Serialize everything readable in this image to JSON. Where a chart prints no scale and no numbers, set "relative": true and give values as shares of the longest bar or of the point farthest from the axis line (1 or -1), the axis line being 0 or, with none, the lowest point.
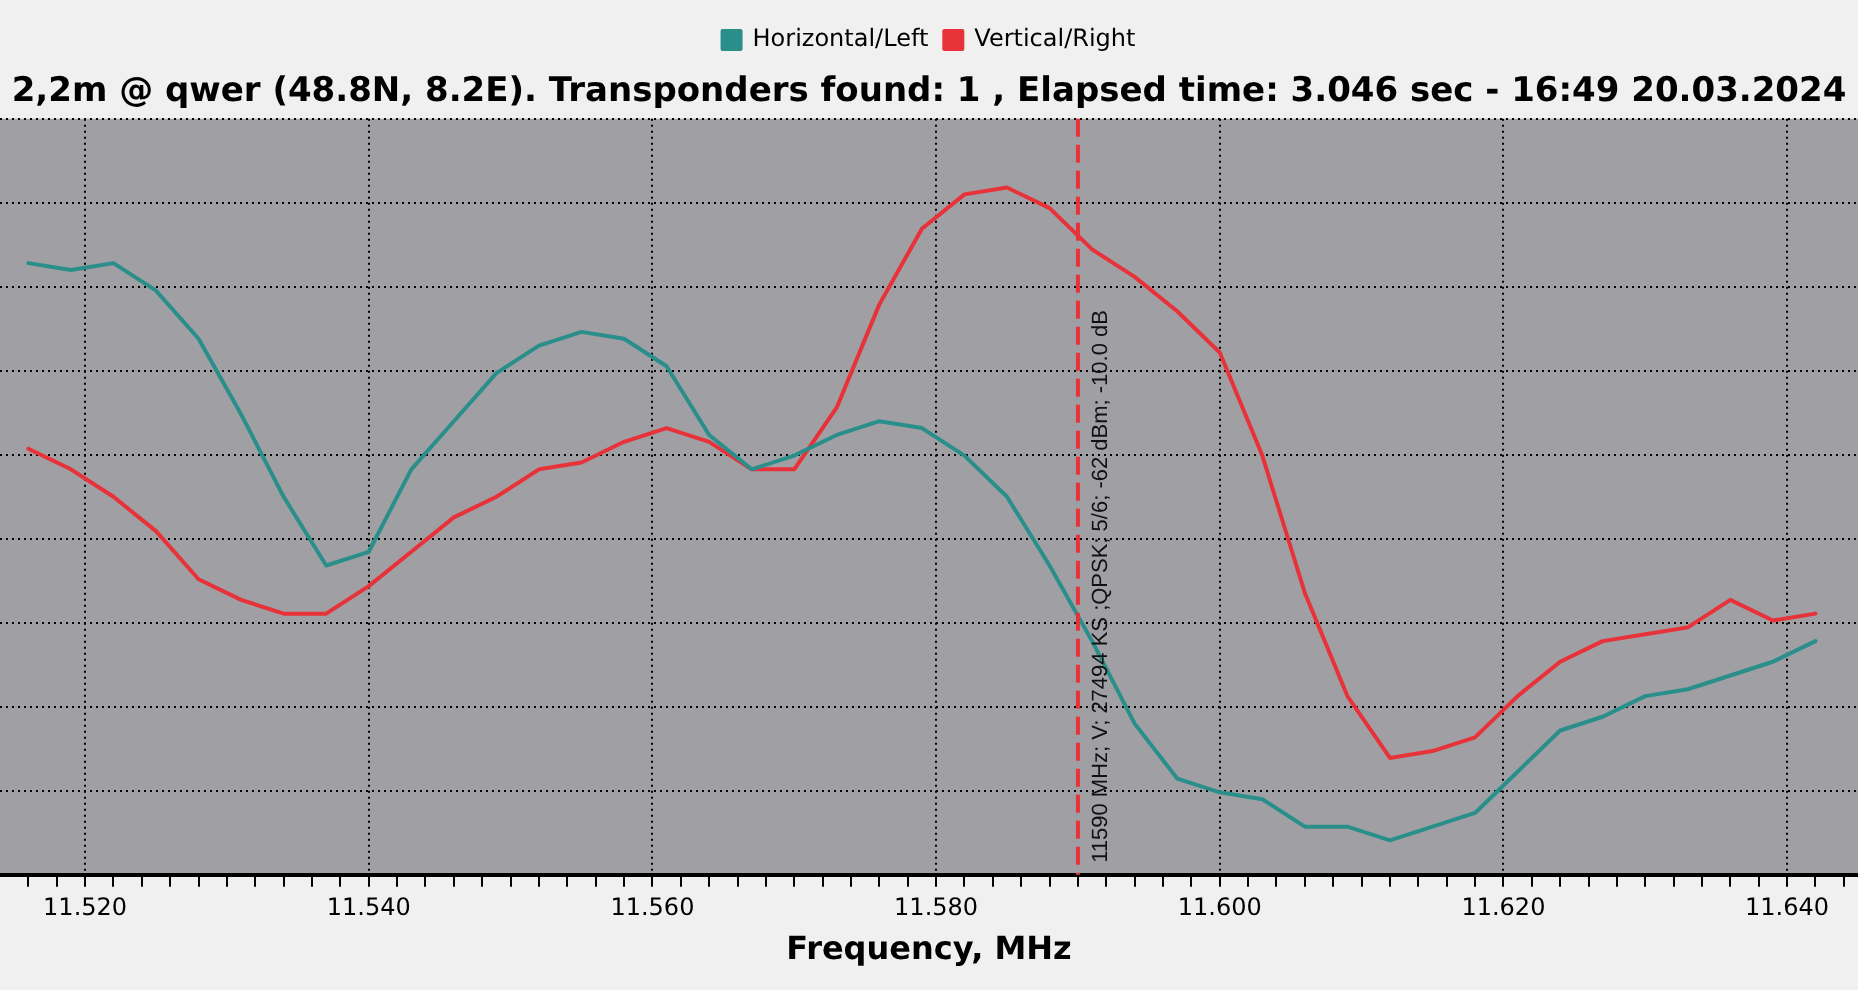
{
  "chart_data": {
    "type": "line",
    "title": "2,2m @ qwer (48.8N, 8.2E). Transponders found: 1 , Elapsed time: 3.046 sec - 16:49 20.03.2024",
    "xlabel": "Frequency, MHz",
    "x": [
      11.516,
      11.519,
      11.522,
      11.525,
      11.528,
      11.531,
      11.534,
      11.537,
      11.54,
      11.543,
      11.546,
      11.549,
      11.552,
      11.555,
      11.558,
      11.561,
      11.564,
      11.567,
      11.57,
      11.573,
      11.576,
      11.579,
      11.582,
      11.585,
      11.588,
      11.591,
      11.594,
      11.597,
      11.6,
      11.603,
      11.606,
      11.609,
      11.612,
      11.615,
      11.618,
      11.621,
      11.624,
      11.627,
      11.63,
      11.633,
      11.636,
      11.639,
      11.642
    ],
    "series": [
      {
        "name": "Horizontal/Left",
        "color": "#2a8f8a",
        "values": [
          0.89,
          0.88,
          0.89,
          0.85,
          0.78,
          0.67,
          0.55,
          0.45,
          0.47,
          0.59,
          0.66,
          0.73,
          0.77,
          0.79,
          0.78,
          0.74,
          0.64,
          0.59,
          0.61,
          0.64,
          0.66,
          0.65,
          0.61,
          0.55,
          0.45,
          0.34,
          0.22,
          0.14,
          0.12,
          0.11,
          0.07,
          0.07,
          0.05,
          0.07,
          0.09,
          0.15,
          0.21,
          0.23,
          0.26,
          0.27,
          0.29,
          0.31,
          0.34
        ]
      },
      {
        "name": "Vertical/Right",
        "color": "#e8323a",
        "values": [
          0.62,
          0.59,
          0.55,
          0.5,
          0.43,
          0.4,
          0.38,
          0.38,
          0.42,
          0.47,
          0.52,
          0.55,
          0.59,
          0.6,
          0.63,
          0.65,
          0.63,
          0.59,
          0.59,
          0.68,
          0.83,
          0.94,
          0.99,
          1,
          0.97,
          0.91,
          0.87,
          0.82,
          0.76,
          0.61,
          0.41,
          0.26,
          0.17,
          0.18,
          0.2,
          0.26,
          0.31,
          0.34,
          0.35,
          0.36,
          0.4,
          0.37,
          0.38
        ]
      }
    ],
    "relative": true,
    "xlim": [
      11.514,
      11.645
    ],
    "xticks": [
      {
        "value": 11.516,
        "label": null
      },
      {
        "value": 11.518,
        "label": null
      },
      {
        "value": 11.52,
        "label": "11.520"
      },
      {
        "value": 11.522,
        "label": null
      },
      {
        "value": 11.524,
        "label": null
      },
      {
        "value": 11.526,
        "label": null
      },
      {
        "value": 11.528,
        "label": null
      },
      {
        "value": 11.53,
        "label": null
      },
      {
        "value": 11.532,
        "label": null
      },
      {
        "value": 11.534,
        "label": null
      },
      {
        "value": 11.536,
        "label": null
      },
      {
        "value": 11.538,
        "label": null
      },
      {
        "value": 11.54,
        "label": "11.540"
      },
      {
        "value": 11.542,
        "label": null
      },
      {
        "value": 11.544,
        "label": null
      },
      {
        "value": 11.546,
        "label": null
      },
      {
        "value": 11.548,
        "label": null
      },
      {
        "value": 11.55,
        "label": null
      },
      {
        "value": 11.552,
        "label": null
      },
      {
        "value": 11.554,
        "label": null
      },
      {
        "value": 11.556,
        "label": null
      },
      {
        "value": 11.558,
        "label": null
      },
      {
        "value": 11.56,
        "label": "11.560"
      },
      {
        "value": 11.562,
        "label": null
      },
      {
        "value": 11.564,
        "label": null
      },
      {
        "value": 11.566,
        "label": null
      },
      {
        "value": 11.568,
        "label": null
      },
      {
        "value": 11.57,
        "label": null
      },
      {
        "value": 11.572,
        "label": null
      },
      {
        "value": 11.574,
        "label": null
      },
      {
        "value": 11.576,
        "label": null
      },
      {
        "value": 11.578,
        "label": null
      },
      {
        "value": 11.58,
        "label": "11.580"
      },
      {
        "value": 11.582,
        "label": null
      },
      {
        "value": 11.584,
        "label": null
      },
      {
        "value": 11.586,
        "label": null
      },
      {
        "value": 11.588,
        "label": null
      },
      {
        "value": 11.59,
        "label": null
      },
      {
        "value": 11.592,
        "label": null
      },
      {
        "value": 11.594,
        "label": null
      },
      {
        "value": 11.596,
        "label": null
      },
      {
        "value": 11.598,
        "label": null
      },
      {
        "value": 11.6,
        "label": "11.600"
      },
      {
        "value": 11.602,
        "label": null
      },
      {
        "value": 11.604,
        "label": null
      },
      {
        "value": 11.606,
        "label": null
      },
      {
        "value": 11.608,
        "label": null
      },
      {
        "value": 11.61,
        "label": null
      },
      {
        "value": 11.612,
        "label": null
      },
      {
        "value": 11.614,
        "label": null
      },
      {
        "value": 11.616,
        "label": null
      },
      {
        "value": 11.618,
        "label": null
      },
      {
        "value": 11.62,
        "label": "11.620"
      },
      {
        "value": 11.622,
        "label": null
      },
      {
        "value": 11.624,
        "label": null
      },
      {
        "value": 11.626,
        "label": null
      },
      {
        "value": 11.628,
        "label": null
      },
      {
        "value": 11.63,
        "label": null
      },
      {
        "value": 11.632,
        "label": null
      },
      {
        "value": 11.634,
        "label": null
      },
      {
        "value": 11.636,
        "label": null
      },
      {
        "value": 11.638,
        "label": null
      },
      {
        "value": 11.64,
        "label": "11.640"
      },
      {
        "value": 11.642,
        "label": null
      },
      {
        "value": 11.644,
        "label": null
      }
    ],
    "ref_lines": [
      {
        "axis": "x",
        "value": 11.59,
        "label": "11590 MHz; V; 27494 KS ;QPSK; 5/6; -62 dBm; -10.0 dB",
        "color": "#e8323a",
        "line_style": "dashed"
      }
    ],
    "grid": true,
    "legend": "top",
    "marker": "none",
    "line_style": "solid"
  }
}
